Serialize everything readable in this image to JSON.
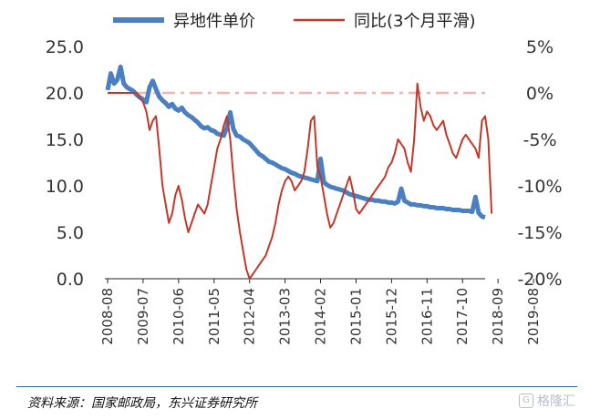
{
  "chart_data": {
    "type": "line",
    "legend": [
      {
        "name": "异地件单价",
        "color": "#4a7fc1"
      },
      {
        "name": "同比(3个月平滑)",
        "color": "#c0392b"
      }
    ],
    "legend_position": "top",
    "y_left": {
      "ticks": [
        "25.0",
        "20.0",
        "15.0",
        "10.0",
        "5.0",
        "0.0"
      ],
      "ylim": [
        0,
        25
      ]
    },
    "y_right": {
      "ticks": [
        "5%",
        "0%",
        "-5%",
        "-10%",
        "-15%",
        "-20%"
      ],
      "ylim": [
        -20,
        5
      ],
      "unit": "%"
    },
    "x_tick_labels": [
      "2008-08",
      "2009-07",
      "2010-06",
      "2011-05",
      "2012-04",
      "2013-03",
      "2014-02",
      "2015-01",
      "2015-12",
      "2016-11",
      "2017-10",
      "2018-09",
      "2019-08"
    ],
    "x_start": "2008-08",
    "series": [
      {
        "name": "异地件单价",
        "axis": "left",
        "color": "#4a7fc1",
        "values": [
          20.3,
          22.1,
          21.0,
          21.4,
          22.8,
          21.0,
          20.6,
          20.4,
          20.2,
          19.8,
          19.5,
          19.3,
          19.0,
          20.6,
          21.3,
          20.4,
          19.6,
          19.2,
          18.9,
          18.5,
          18.8,
          18.3,
          18.1,
          18.4,
          17.9,
          17.6,
          17.4,
          17.1,
          16.8,
          16.4,
          16.2,
          16.3,
          16.0,
          15.9,
          15.6,
          15.5,
          15.4,
          16.3,
          17.9,
          16.1,
          15.4,
          15.3,
          15.0,
          14.8,
          14.6,
          14.2,
          13.8,
          13.4,
          13.2,
          12.9,
          12.6,
          12.5,
          12.3,
          12.1,
          11.9,
          11.8,
          11.6,
          11.4,
          11.3,
          11.1,
          11.0,
          10.9,
          10.8,
          10.7,
          10.6,
          10.5,
          12.9,
          10.4,
          10.1,
          9.9,
          9.8,
          9.7,
          9.6,
          9.5,
          9.3,
          9.1,
          9.0,
          8.9,
          8.8,
          8.7,
          8.6,
          8.5,
          8.5,
          8.4,
          8.4,
          8.3,
          8.3,
          8.2,
          8.2,
          8.1,
          8.3,
          9.7,
          8.4,
          8.2,
          8.0,
          8.0,
          7.9,
          7.9,
          7.8,
          7.8,
          7.7,
          7.7,
          7.6,
          7.6,
          7.6,
          7.5,
          7.5,
          7.4,
          7.4,
          7.4,
          7.3,
          7.3,
          7.3,
          7.2,
          8.8,
          7.1,
          6.7,
          6.6
        ]
      },
      {
        "name": "同比(3个月平滑)",
        "axis": "right",
        "color": "#c0392b",
        "values": [
          0.0,
          0.0,
          0.0,
          0.0,
          0.0,
          0.0,
          0.0,
          0.0,
          0.0,
          0.0,
          -0.5,
          -1.0,
          -2.0,
          -4.0,
          -3.0,
          -2.5,
          -6.0,
          -10.0,
          -12.0,
          -14.0,
          -13.0,
          -11.0,
          -10.0,
          -11.5,
          -13.5,
          -15.0,
          -14.0,
          -13.0,
          -12.0,
          -12.5,
          -13.0,
          -12.0,
          -10.0,
          -8.0,
          -6.0,
          -5.0,
          -3.5,
          -2.5,
          -5.0,
          -9.0,
          -12.5,
          -15.0,
          -17.0,
          -19.0,
          -20.0,
          -19.5,
          -19.0,
          -18.5,
          -18.0,
          -17.5,
          -16.5,
          -15.5,
          -14.0,
          -12.0,
          -10.5,
          -9.5,
          -9.0,
          -9.5,
          -10.5,
          -10.0,
          -9.5,
          -8.5,
          -6.0,
          -3.0,
          -2.5,
          -8.0,
          -9.0,
          -11.0,
          -13.0,
          -14.5,
          -14.0,
          -13.0,
          -12.0,
          -11.0,
          -10.0,
          -9.0,
          -10.5,
          -12.5,
          -13.0,
          -12.5,
          -12.0,
          -11.5,
          -11.0,
          -10.5,
          -10.0,
          -9.5,
          -9.0,
          -8.0,
          -7.5,
          -6.5,
          -5.0,
          -5.5,
          -6.0,
          -7.5,
          -8.5,
          -5.0,
          1.0,
          -1.5,
          -3.0,
          -2.0,
          -2.5,
          -3.5,
          -4.0,
          -3.5,
          -3.0,
          -4.5,
          -5.5,
          -6.5,
          -7.0,
          -6.0,
          -5.0,
          -4.5,
          -5.0,
          -5.5,
          -6.0,
          -7.0,
          -3.0,
          -2.5,
          -5.0,
          -13.0
        ]
      }
    ],
    "zero_reference": {
      "axis": "right",
      "value": 0,
      "color": "#f0b4b4",
      "style": "dash-dot"
    }
  },
  "footer": {
    "source": "资料来源：国家邮政局，东兴证券研究所",
    "watermark": "格隆汇"
  }
}
